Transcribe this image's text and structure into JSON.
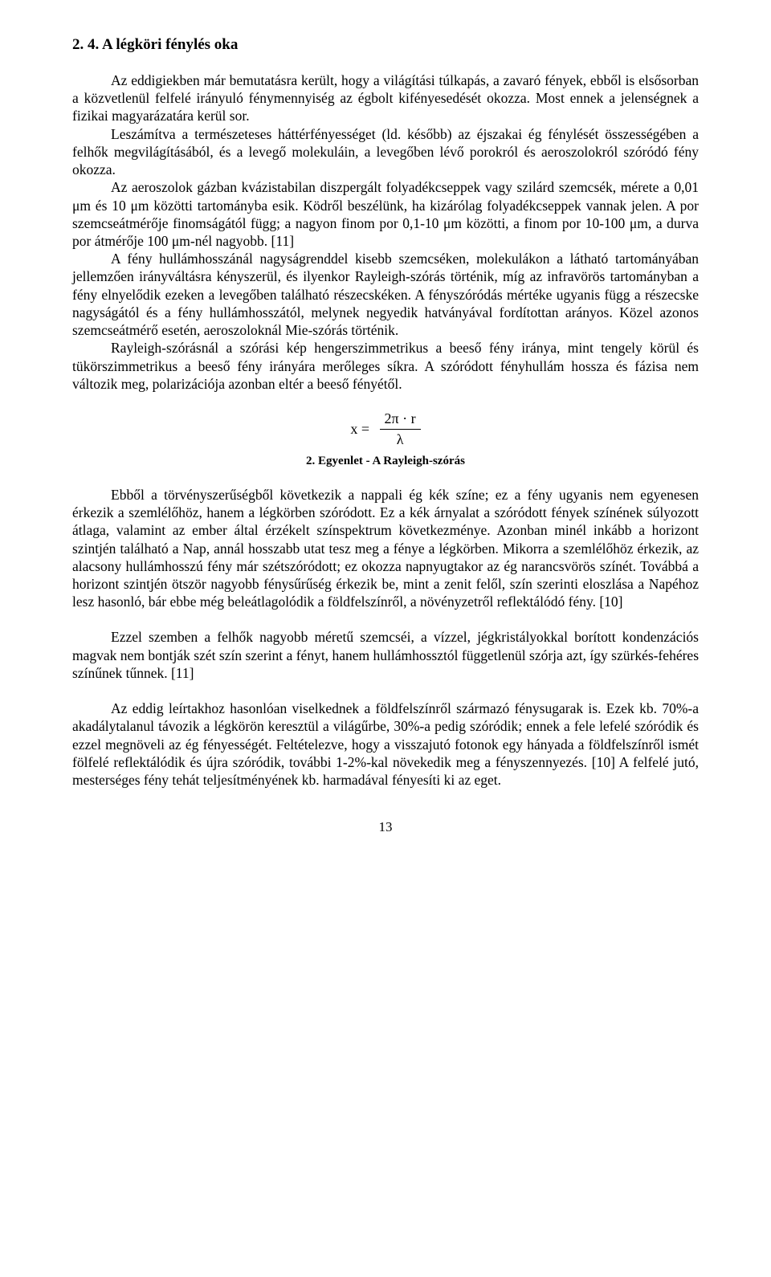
{
  "section_title": "2. 4. A légköri fénylés oka",
  "paragraphs": {
    "p1": "Az eddigiekben már bemutatásra került, hogy a világítási túlkapás, a zavaró fények, ebből is elsősorban a közvetlenül felfelé irányuló fénymennyiség az égbolt kifényesedését okozza. Most ennek a jelenségnek a fizikai magyarázatára kerül sor.",
    "p2": "Leszámítva a természeteses háttérfényességet (ld. később) az éjszakai ég fénylését összességében a felhők megvilágításából, és a levegő molekuláin, a levegőben lévő porokról és aeroszolokról szóródó fény okozza.",
    "p3": "Az aeroszolok gázban kvázistabilan diszpergált folyadékcseppek vagy szilárd szemcsék, mérete a 0,01 μm és 10 μm közötti tartományba esik. Ködről beszélünk, ha kizárólag folyadékcseppek vannak jelen. A por szemcseátmérője finomságától függ; a nagyon finom por 0,1-10 μm közötti, a finom por 10-100 μm, a durva por átmérője 100 μm-nél nagyobb. [11]",
    "p4": "A fény hullámhosszánál nagyságrenddel kisebb szemcséken, molekulákon a látható tartományában jellemzően irányváltásra kényszerül, és ilyenkor Rayleigh-szórás történik, míg az infravörös tartományban a fény elnyelődik ezeken a levegőben található részecskéken. A fényszóródás mértéke ugyanis függ a részecske nagyságától és a fény hullámhosszától, melynek negyedik hatványával fordítottan arányos. Közel azonos szemcseátmérő esetén, aeroszoloknál Mie-szórás történik.",
    "p5": "Rayleigh-szórásnál a szórási kép hengerszimmetrikus a beeső fény iránya, mint tengely körül és tükörszimmetrikus a beeső fény irányára merőleges síkra. A szóródott fényhullám hossza és fázisa nem változik meg, polarizációja azonban eltér a beeső fényétől.",
    "p6": "Ebből a törvényszerűségből következik a nappali ég kék színe; ez a fény ugyanis nem egyenesen érkezik a szemlélőhöz, hanem a légkörben szóródott. Ez a kék árnyalat a szóródott fények színének súlyozott átlaga, valamint az ember által érzékelt színspektrum következménye. Azonban minél inkább a horizont szintjén található a Nap, annál hosszabb utat tesz meg a fénye a légkörben. Mikorra a szemlélőhöz érkezik, az alacsony hullámhosszú fény már szétszóródott; ez okozza napnyugtakor az ég narancsvörös színét. Továbbá a horizont szintjén ötször nagyobb fénysűrűség érkezik be, mint a zenit felől, szín szerinti eloszlása a Napéhoz lesz hasonló, bár ebbe még beleátlagolódik a földfelszínről, a növényzetről reflektálódó fény. [10]",
    "p7": "Ezzel szemben a felhők nagyobb méretű szemcséi, a vízzel, jégkristályokkal borított kondenzációs magvak nem bontják szét szín szerint a fényt, hanem hullámhossztól függetlenül szórja azt, így szürkés-fehéres színűnek tűnnek. [11]",
    "p8": "Az eddig leírtakhoz hasonlóan viselkednek a földfelszínről származó fénysugarak is. Ezek kb. 70%-a akadálytalanul távozik a légkörön keresztül a világűrbe, 30%-a pedig szóródik; ennek a fele lefelé szóródik és ezzel megnöveli az ég fényességét. Feltételezve, hogy a visszajutó fotonok egy hányada a földfelszínről ismét fölfelé reflektálódik és újra szóródik, további 1-2%-kal növekedik meg a fényszennyezés. [10] A felfelé jutó, mesterséges fény tehát teljesítményének kb. harmadával fényesíti ki az eget."
  },
  "equation": {
    "lhs": "x =",
    "numerator": "2π · r",
    "denominator": "λ"
  },
  "equation_caption": "2. Egyenlet - A Rayleigh-szórás",
  "page_number": "13"
}
